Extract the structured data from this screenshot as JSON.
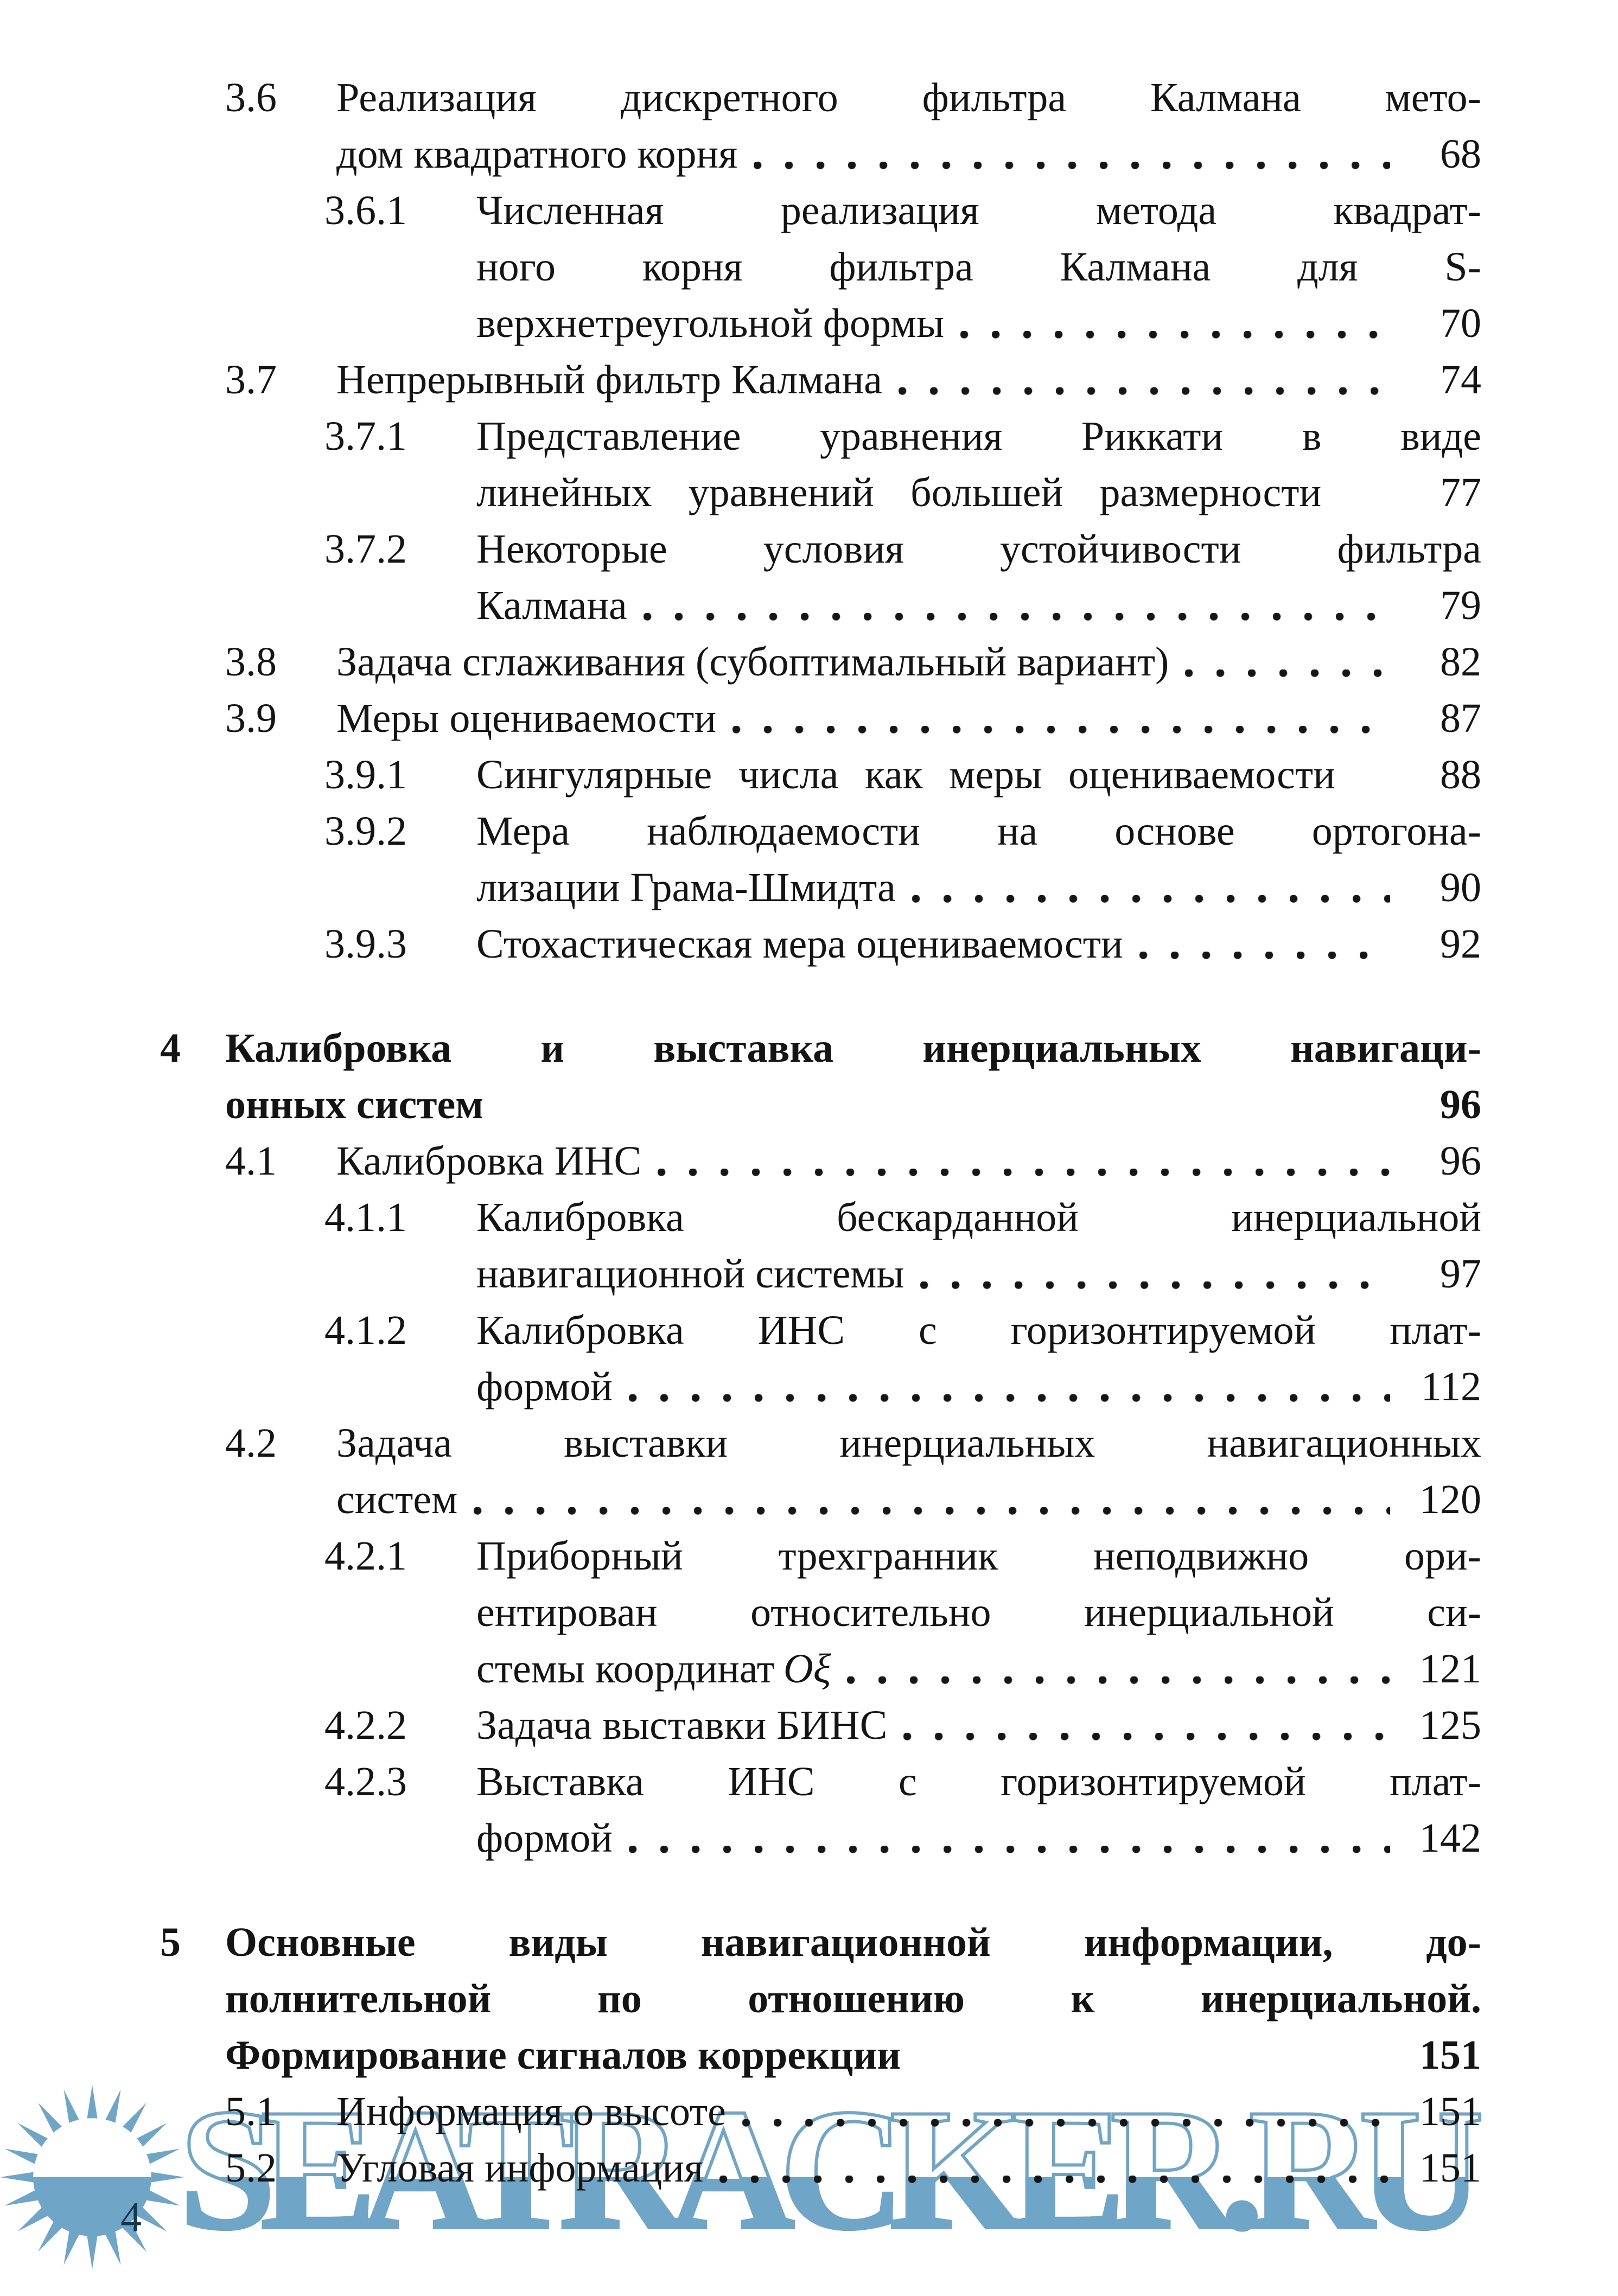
{
  "page": {
    "number": "4",
    "background_color": "#ffffff",
    "text_color": "#141414",
    "folio_color": "#14364F"
  },
  "watermark": {
    "text": "SEATRACKER.RU",
    "color": "#6FA6C8",
    "logo": "sun-logo"
  },
  "toc": {
    "rows": [
      {
        "level": "section",
        "num": "3.6",
        "text": "Реализация дискретного фильтра Калмана мето-",
        "stretch": true
      },
      {
        "level": "section-cont",
        "text": "дом квадратного корня",
        "dots": true,
        "page": "68"
      },
      {
        "level": "subsection",
        "num": "3.6.1",
        "text": "Численная реализация метода квадрат-",
        "stretch": true
      },
      {
        "level": "subsection-cont",
        "text": "ного корня фильтра Калмана для S-",
        "stretch": true
      },
      {
        "level": "subsection-cont",
        "text": "верхнетреугольной формы",
        "dots": true,
        "page": "70"
      },
      {
        "level": "section",
        "num": "3.7",
        "text": "Непрерывный фильтр Калмана",
        "dots": true,
        "page": "74"
      },
      {
        "level": "subsection",
        "num": "3.7.1",
        "text": "Представление уравнения Риккати в виде",
        "stretch": true
      },
      {
        "level": "subsection-cont",
        "text": "линейных уравнений большей размерности",
        "stretch": true,
        "page": "77"
      },
      {
        "level": "subsection",
        "num": "3.7.2",
        "text": "Некоторые условия устойчивости фильтра",
        "stretch": true
      },
      {
        "level": "subsection-cont",
        "text": "Калмана",
        "dots": true,
        "page": "79"
      },
      {
        "level": "section",
        "num": "3.8",
        "text": "Задача сглаживания (субоптимальный вариант)",
        "dots": true,
        "page": "82"
      },
      {
        "level": "section",
        "num": "3.9",
        "text": "Меры оцениваемости",
        "dots": true,
        "page": "87"
      },
      {
        "level": "subsection",
        "num": "3.9.1",
        "text": "Сингулярные числа как меры оцениваемости",
        "stretch": true,
        "page": "88"
      },
      {
        "level": "subsection",
        "num": "3.9.2",
        "text": "Мера наблюдаемости на основе ортогона-",
        "stretch": true
      },
      {
        "level": "subsection-cont",
        "text": "лизации Грама-Шмидта",
        "dots": true,
        "page": "90"
      },
      {
        "level": "subsection",
        "num": "3.9.3",
        "text": "Стохастическая мера оцениваемости",
        "dots": true,
        "page": "92"
      },
      {
        "level": "chapter",
        "num": "4",
        "text": "Калибровка и выставка инерциальных навигаци-",
        "stretch": true,
        "gap": true
      },
      {
        "level": "chapter-cont",
        "text": "онных систем",
        "page": "96"
      },
      {
        "level": "section",
        "num": "4.1",
        "text": "Калибровка ИНС",
        "dots": true,
        "page": "96"
      },
      {
        "level": "subsection",
        "num": "4.1.1",
        "text": "Калибровка бескарданной инерциальной",
        "stretch": true
      },
      {
        "level": "subsection-cont",
        "text": "навигационной системы",
        "dots": true,
        "page": "97"
      },
      {
        "level": "subsection",
        "num": "4.1.2",
        "text": "Калибровка ИНС с горизонтируемой плат-",
        "stretch": true
      },
      {
        "level": "subsection-cont",
        "text": "формой",
        "dots": true,
        "page": "112"
      },
      {
        "level": "section",
        "num": "4.2",
        "text": "Задача выставки инерциальных навигационных",
        "stretch": true
      },
      {
        "level": "section-cont",
        "text": "систем",
        "dots": true,
        "page": "120"
      },
      {
        "level": "subsection",
        "num": "4.2.1",
        "text": "Приборный трехгранник неподвижно ори-",
        "stretch": true
      },
      {
        "level": "subsection-cont",
        "text": "ентирован относительно инерциальной си-",
        "stretch": true
      },
      {
        "level": "subsection-cont",
        "text": "стемы координат",
        "math": "Oξ",
        "dots": true,
        "page": "121"
      },
      {
        "level": "subsection",
        "num": "4.2.2",
        "text": "Задача выставки БИНС",
        "dots": true,
        "page": "125"
      },
      {
        "level": "subsection",
        "num": "4.2.3",
        "text": "Выставка ИНС с горизонтируемой плат-",
        "stretch": true
      },
      {
        "level": "subsection-cont",
        "text": "формой",
        "dots": true,
        "page": "142"
      },
      {
        "level": "chapter",
        "num": "5",
        "text": "Основные виды навигационной информации, до-",
        "stretch": true,
        "gap": true
      },
      {
        "level": "chapter-cont",
        "text": "полнительной по отношению к инерциальной.",
        "stretch": true
      },
      {
        "level": "chapter-cont",
        "text": "Формирование сигналов коррекции",
        "page": "151"
      },
      {
        "level": "section",
        "num": "5.1",
        "text": "Информация о высоте",
        "dots": true,
        "page": "151"
      },
      {
        "level": "section",
        "num": "5.2",
        "text": "Угловая информация",
        "dots": true,
        "page": "151"
      }
    ]
  }
}
